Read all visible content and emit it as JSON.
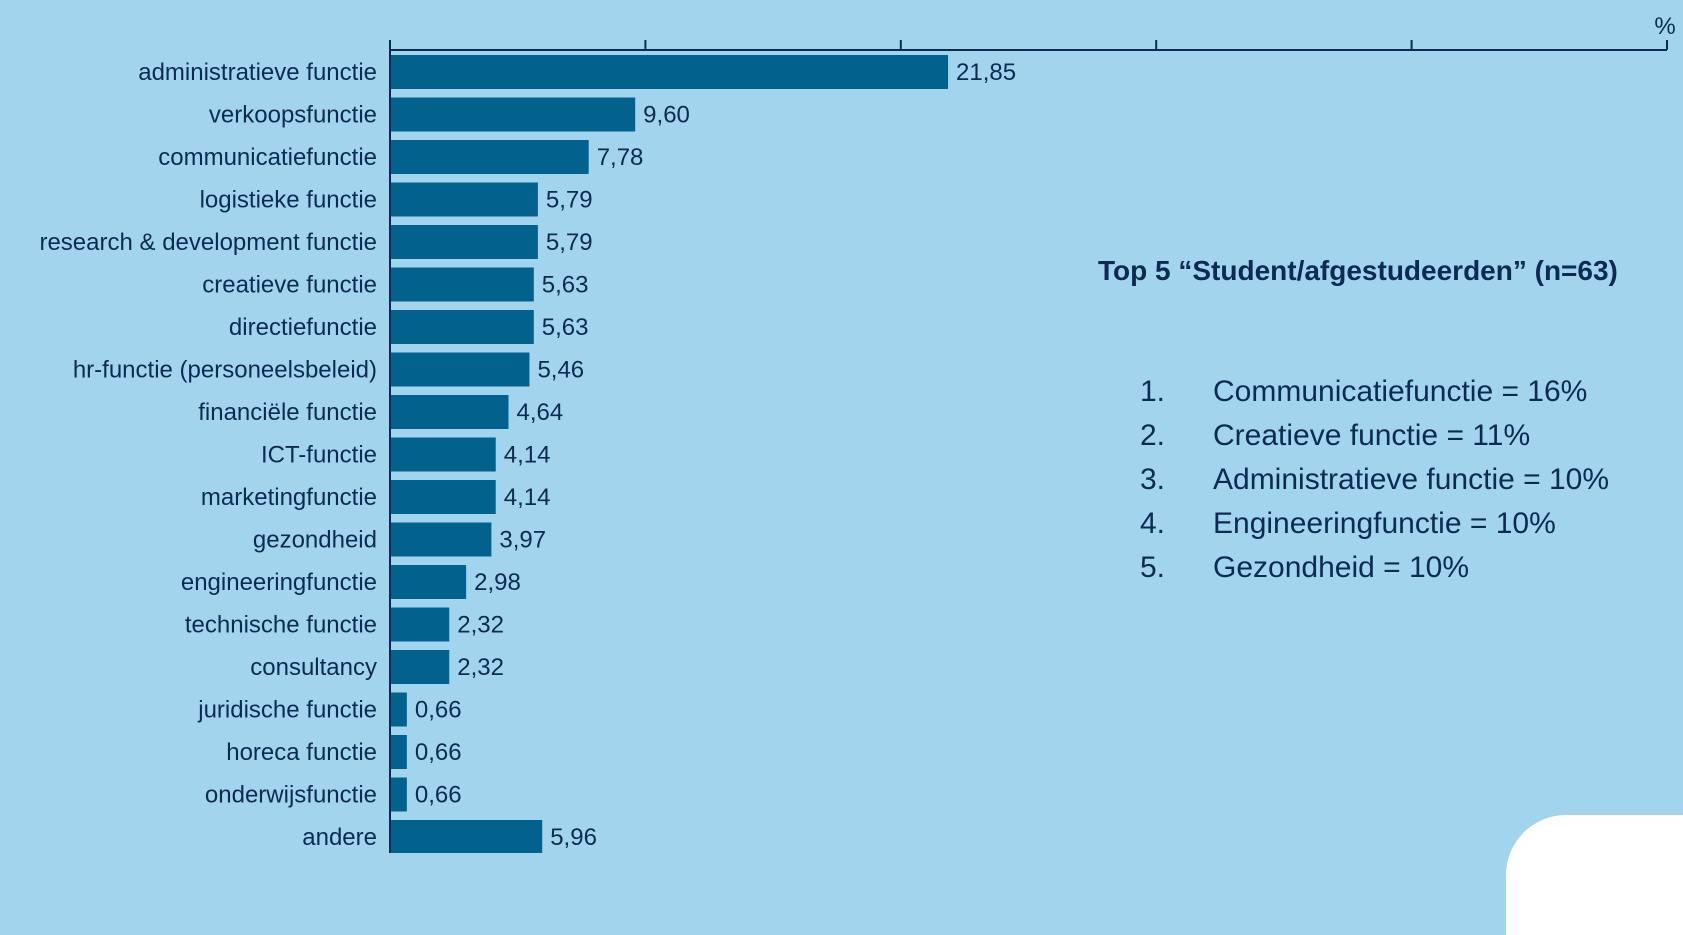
{
  "chart_data": {
    "type": "bar",
    "orientation": "horizontal",
    "unit": "%",
    "categories": [
      "administratieve functie",
      "verkoopsfunctie",
      "communicatiefunctie",
      "logistieke functie",
      "research & development functie",
      "creatieve functie",
      "directiefunctie",
      "hr-functie (personeelsbeleid)",
      "financiële functie",
      "ICT-functie",
      "marketingfunctie",
      "gezondheid",
      "engineeringfunctie",
      "technische functie",
      "consultancy",
      "juridische functie",
      "horeca functie",
      "onderwijsfunctie",
      "andere"
    ],
    "values": [
      21.85,
      9.6,
      7.78,
      5.79,
      5.79,
      5.63,
      5.63,
      5.46,
      4.64,
      4.14,
      4.14,
      3.97,
      2.98,
      2.32,
      2.32,
      0.66,
      0.66,
      0.66,
      5.96
    ],
    "value_labels": [
      "21,85",
      "9,60",
      "7,78",
      "5,79",
      "5,79",
      "5,63",
      "5,63",
      "5,46",
      "4,64",
      "4,14",
      "4,14",
      "3,97",
      "2,98",
      "2,32",
      "2,32",
      "0,66",
      "0,66",
      "0,66",
      "5,96"
    ],
    "xlim": [
      0,
      50
    ],
    "x_ticks": [
      0,
      10,
      20,
      30,
      40,
      50
    ],
    "axis_position": "top",
    "grid": false,
    "bar_color": "#03618e"
  },
  "top5": {
    "title": "Top 5 “Student/afgestudeerden” (n=63)",
    "items": [
      {
        "num": "1.",
        "text": "Communicatiefunctie = 16%"
      },
      {
        "num": "2.",
        "text": "Creatieve functie = 11%"
      },
      {
        "num": "3.",
        "text": "Administratieve functie = 10%"
      },
      {
        "num": "4.",
        "text": "Engineeringfunctie = 10%"
      },
      {
        "num": "5.",
        "text": "Gezondheid = 10%"
      }
    ]
  },
  "colors": {
    "background": "#a3d4ee",
    "text": "#0c2a52",
    "bar": "#03618e",
    "axis": "#0c2a52"
  }
}
